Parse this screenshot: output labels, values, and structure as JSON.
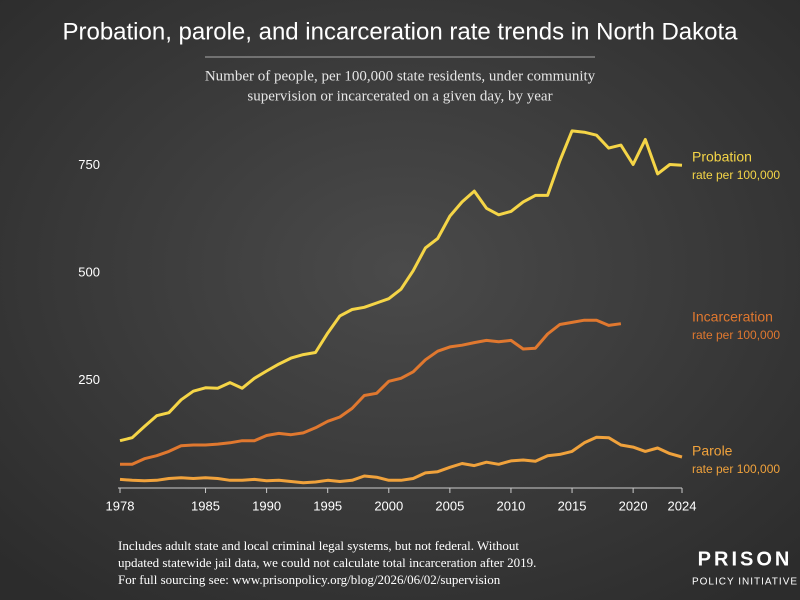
{
  "chart_data": {
    "type": "line",
    "title": "Probation, parole, and incarceration rate trends in North Dakota",
    "subtitle": [
      "Number of people, per 100,000 state residents, under community",
      "supervision or incarcerated on a given day, by year"
    ],
    "x": [
      1978,
      1979,
      1980,
      1981,
      1982,
      1983,
      1984,
      1985,
      1986,
      1987,
      1988,
      1989,
      1990,
      1991,
      1992,
      1993,
      1994,
      1995,
      1996,
      1997,
      1998,
      1999,
      2000,
      2001,
      2002,
      2003,
      2004,
      2005,
      2006,
      2007,
      2008,
      2009,
      2010,
      2011,
      2012,
      2013,
      2014,
      2015,
      2016,
      2017,
      2018,
      2019,
      2020,
      2021,
      2022,
      2023,
      2024
    ],
    "series": [
      {
        "name": "Probation",
        "note": "rate per 100,000",
        "color": "#f5d547",
        "values": [
          110,
          117,
          143,
          168,
          175,
          205,
          225,
          233,
          232,
          245,
          232,
          255,
          272,
          288,
          302,
          310,
          315,
          360,
          400,
          415,
          420,
          430,
          440,
          462,
          505,
          558,
          580,
          632,
          665,
          690,
          650,
          635,
          643,
          665,
          680,
          680,
          760,
          830,
          827,
          820,
          790,
          797,
          752,
          810,
          730,
          752,
          750
        ]
      },
      {
        "name": "Incarceration",
        "note": "rate per 100,000",
        "color": "#e0782f",
        "values": [
          55,
          55,
          68,
          75,
          85,
          98,
          100,
          100,
          102,
          105,
          110,
          110,
          122,
          127,
          124,
          128,
          140,
          155,
          165,
          185,
          215,
          220,
          248,
          255,
          270,
          298,
          318,
          328,
          332,
          338,
          343,
          340,
          343,
          323,
          325,
          358,
          380,
          385,
          390,
          390,
          378,
          382,
          null,
          null,
          null,
          null,
          null
        ]
      },
      {
        "name": "Parole",
        "note": "rate per 100,000",
        "color": "#f0a23c",
        "values": [
          20,
          18,
          17,
          18,
          22,
          24,
          22,
          24,
          22,
          18,
          18,
          20,
          17,
          18,
          15,
          12,
          14,
          18,
          15,
          18,
          28,
          25,
          18,
          18,
          22,
          35,
          38,
          48,
          57,
          52,
          60,
          55,
          63,
          65,
          62,
          75,
          78,
          85,
          105,
          118,
          117,
          100,
          95,
          85,
          93,
          80,
          72
        ]
      }
    ],
    "xlim": [
      1978,
      2024
    ],
    "xticks": [
      1978,
      1985,
      1990,
      1995,
      2000,
      2005,
      2010,
      2015,
      2020,
      2024
    ],
    "ylim": [
      0,
      860
    ],
    "yticks": [
      250,
      500,
      750
    ],
    "grid": false,
    "footnote": [
      "Includes adult state and local criminal legal systems, but not federal. Without",
      "updated statewide jail data, we could not calculate total incarceration after 2019.",
      "For full sourcing see: www.prisonpolicy.org/blog/2026/06/02/supervision"
    ],
    "logo": [
      "PRISON",
      "POLICY INITIATIVE"
    ]
  }
}
